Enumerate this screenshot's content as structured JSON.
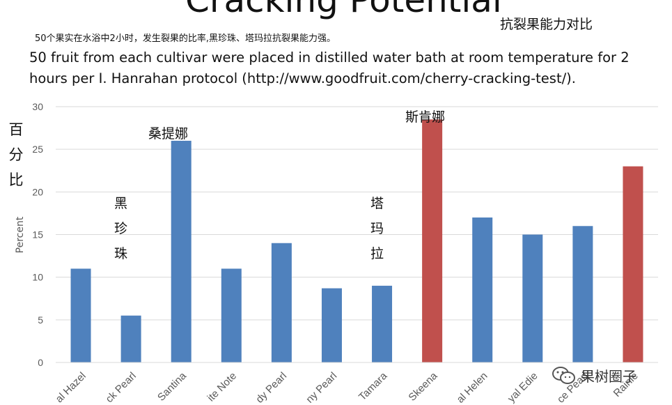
{
  "title": "Cracking Potential",
  "title_cn": "抗裂果能力对比",
  "note_cn": "50个果实在水浴中2小时，发生裂果的比率,黑珍珠、塔玛拉抗裂果能力强。",
  "description": "50 fruit from each cultivar were placed in distilled water bath at room temperature for 2 hours per I. Hanrahan protocol (http://www.goodfruit.com/cherry-cracking-test/).",
  "ylabel_cn": [
    "百",
    "分",
    "比"
  ],
  "annotations": {
    "black_pearl": [
      "黑",
      "珍",
      "珠"
    ],
    "santina": "桑提娜",
    "tamara": [
      "塔",
      "玛",
      "拉"
    ],
    "skeena": "斯肯娜"
  },
  "watermark": "果树圈子",
  "chart_data": {
    "type": "bar",
    "ylabel": "Percent",
    "ylim": [
      0,
      30
    ],
    "yticks": [
      0,
      5,
      10,
      15,
      20,
      25,
      30
    ],
    "grid": true,
    "categories": [
      "al Hazel",
      "ck Pearl",
      "Santina",
      "ite Note",
      "dy Pearl",
      "ny Pearl",
      "Tamara",
      "Skeena",
      "al Helen",
      "yal Edie",
      "ce Pearl",
      "Rainie"
    ],
    "values": [
      11,
      5.5,
      26,
      11,
      14,
      8.7,
      9,
      28.5,
      17,
      15,
      16,
      23
    ],
    "colors": [
      "#4f81bd",
      "#4f81bd",
      "#4f81bd",
      "#4f81bd",
      "#4f81bd",
      "#4f81bd",
      "#4f81bd",
      "#c0504d",
      "#4f81bd",
      "#4f81bd",
      "#4f81bd",
      "#c0504d"
    ]
  }
}
